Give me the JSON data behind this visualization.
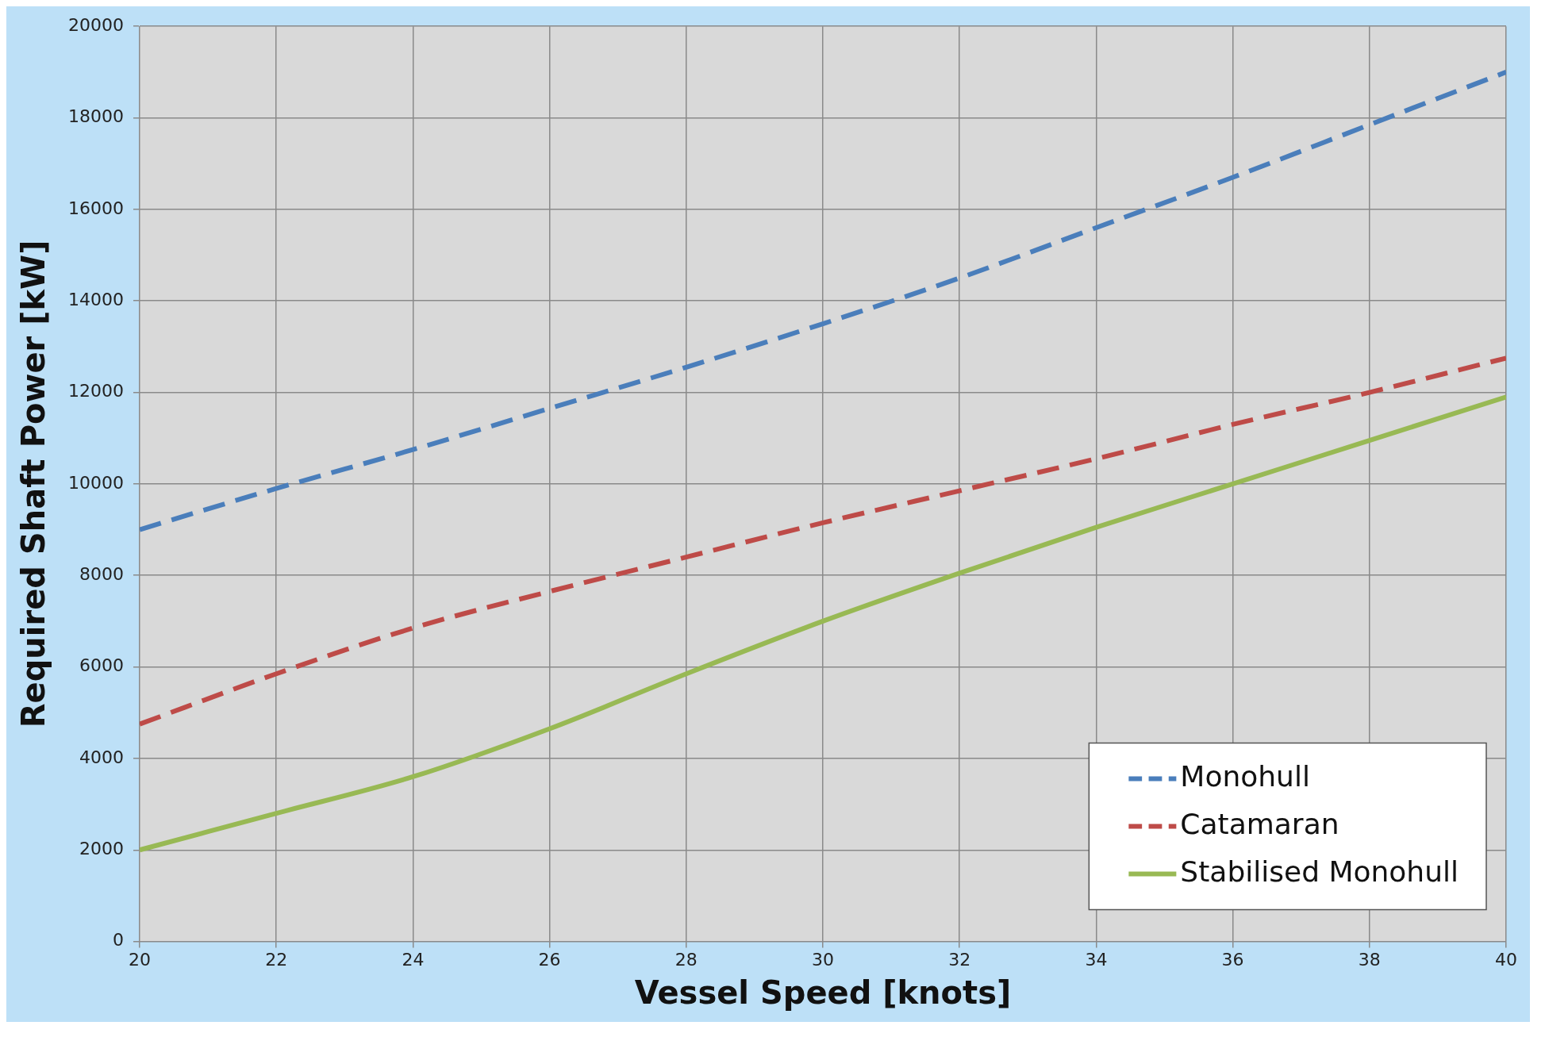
{
  "chart_data": {
    "type": "line",
    "xlabel": "Vessel Speed [knots]",
    "ylabel": "Required Shaft Power [kW]",
    "x": [
      20,
      22,
      24,
      26,
      28,
      30,
      32,
      34,
      36,
      38,
      40
    ],
    "series": [
      {
        "name": "Monohull",
        "color": "#4a7ebb",
        "line_style": "dashed",
        "values": [
          9000,
          9900,
          10750,
          11650,
          12550,
          13500,
          14500,
          15600,
          16700,
          17850,
          19000
        ]
      },
      {
        "name": "Catamaran",
        "color": "#be4b48",
        "line_style": "dashed",
        "values": [
          4750,
          5850,
          6850,
          7650,
          8400,
          9150,
          9850,
          10550,
          11300,
          12000,
          12750
        ]
      },
      {
        "name": "Stabilised Monohull",
        "color": "#98b954",
        "line_style": "solid",
        "values": [
          2000,
          2800,
          3600,
          4650,
          5850,
          7000,
          8050,
          9050,
          10000,
          10950,
          11900
        ]
      }
    ],
    "xlim": [
      20,
      40
    ],
    "xticks": [
      20,
      22,
      24,
      26,
      28,
      30,
      32,
      34,
      36,
      38,
      40
    ],
    "ylim": [
      0,
      20000
    ],
    "yticks": [
      0,
      2000,
      4000,
      6000,
      8000,
      10000,
      12000,
      14000,
      16000,
      18000,
      20000
    ],
    "grid": true,
    "legend": "bottom right",
    "marker": "none"
  }
}
